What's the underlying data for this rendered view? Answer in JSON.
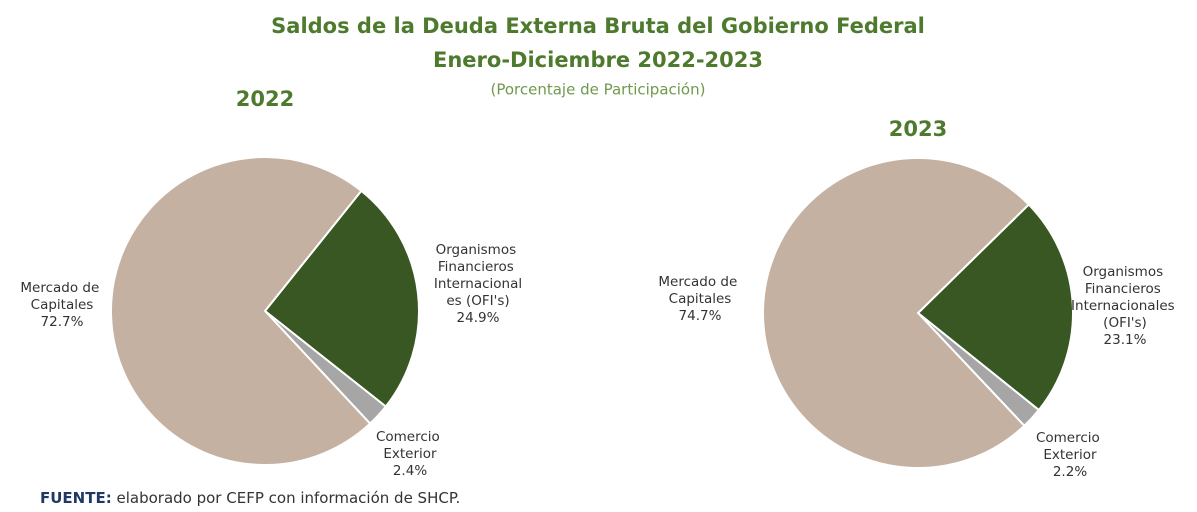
{
  "header": {
    "title": [
      "Saldos de la Deuda Externa Bruta del Gobierno Federal",
      "Enero-Diciembre 2022-2023"
    ],
    "subtitle": "(Porcentaje de Participación)"
  },
  "chart_data": [
    {
      "type": "pie",
      "title": "2022",
      "categories": [
        "Organismos Financieros Internacionales (OFI's)",
        "Comercio Exterior",
        "Mercado de Capitales"
      ],
      "values": [
        24.9,
        2.4,
        72.7
      ],
      "value_labels": [
        "24.9%",
        "2.4%",
        "72.7%"
      ],
      "colors": [
        "#385723",
        "#a6a6a6",
        "#c4b1a2"
      ]
    },
    {
      "type": "pie",
      "title": "2023",
      "categories": [
        "Organismos Financieros Internacionales (OFI's)",
        "Comercio Exterior",
        "Mercado de Capitales"
      ],
      "values": [
        23.1,
        2.2,
        74.7
      ],
      "value_labels": [
        "23.1%",
        "2.2%",
        "74.7%"
      ],
      "colors": [
        "#385723",
        "#a6a6a6",
        "#c4b1a2"
      ]
    }
  ],
  "source": {
    "label": "FUENTE:",
    "text": "elaborado por CEFP con información de SHCP."
  }
}
